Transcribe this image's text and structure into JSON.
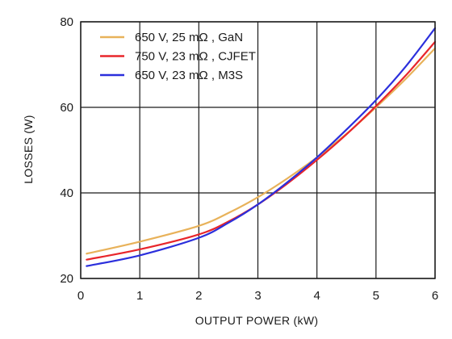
{
  "chart_data": {
    "type": "line",
    "xlabel": "OUTPUT POWER (kW)",
    "ylabel": "LOSSES (W)",
    "xlim": [
      0,
      6
    ],
    "ylim": [
      20,
      80
    ],
    "xticks": [
      "0",
      "1",
      "2",
      "3",
      "4",
      "5",
      "6"
    ],
    "yticks": [
      "20",
      "40",
      "60",
      "80"
    ],
    "grid": true,
    "legend_position": "top-left",
    "series": [
      {
        "name": "650 V, 25 mΩ , GaN",
        "color": "#e8b25a",
        "x": [
          0.1,
          1.0,
          2.0,
          2.5,
          3.0,
          3.5,
          4.0,
          4.5,
          5.0,
          5.5,
          6.0
        ],
        "y": [
          25.8,
          28.6,
          32.3,
          35.3,
          39.0,
          43.4,
          48.3,
          53.8,
          60.0,
          66.6,
          73.8
        ]
      },
      {
        "name": "750 V, 23 mΩ , CJFET",
        "color": "#e8262b",
        "x": [
          0.1,
          1.0,
          2.0,
          2.5,
          3.0,
          3.5,
          4.0,
          4.5,
          5.0,
          5.5,
          6.0
        ],
        "y": [
          24.4,
          26.8,
          30.3,
          33.3,
          37.3,
          42.2,
          47.7,
          53.7,
          60.3,
          67.4,
          75.3
        ]
      },
      {
        "name": "650 V, 23 mΩ , M3S",
        "color": "#2b2fdc",
        "x": [
          0.1,
          1.0,
          2.0,
          2.5,
          3.0,
          3.5,
          4.0,
          4.5,
          5.0,
          5.5,
          6.0
        ],
        "y": [
          22.9,
          25.4,
          29.5,
          33.0,
          37.3,
          42.5,
          48.3,
          54.8,
          61.7,
          69.5,
          78.5
        ]
      }
    ]
  }
}
